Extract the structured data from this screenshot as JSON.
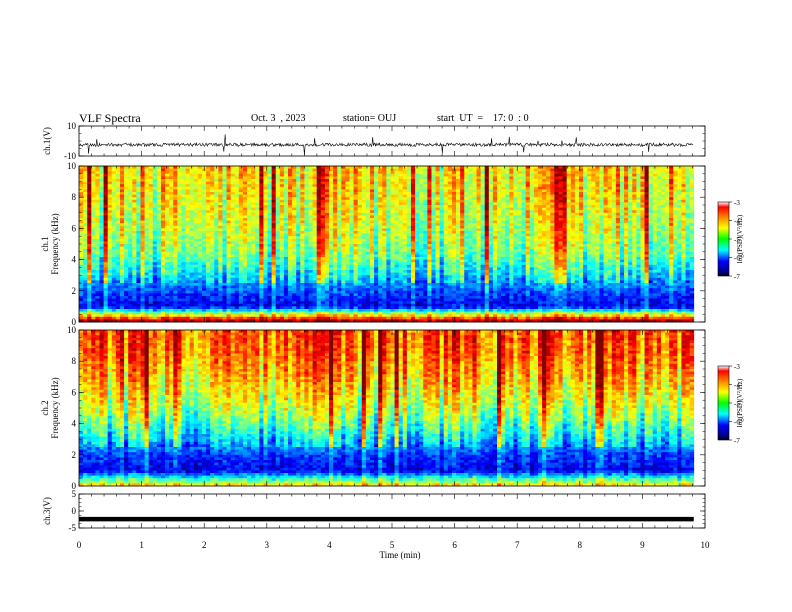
{
  "header": {
    "title": "VLF Spectra",
    "date": "Oct. 3  , 2023",
    "station": "station= OUJ",
    "start": "start  UT  =    17: 0  : 0"
  },
  "chart_data": [
    {
      "type": "line",
      "name": "ch1-waveform",
      "ylabel": "ch.1(V)",
      "xlim": [
        0,
        10
      ],
      "ylim": [
        -10,
        10
      ],
      "yticks": [
        "10",
        "-10"
      ],
      "description_level": -2.5,
      "baseline": -3,
      "xticks": [
        0,
        1,
        2,
        3,
        4,
        5,
        6,
        7,
        8,
        9,
        10
      ]
    },
    {
      "type": "heatmap",
      "name": "ch1-spectrogram",
      "ylabel": "ch.1\nFrequency  (kHz)",
      "xlim": [
        0,
        9.82
      ],
      "ylim": [
        0,
        10
      ],
      "yticks": [
        "0",
        "2",
        "4",
        "6",
        "8",
        "10"
      ],
      "colorbar": {
        "label": "log(PSD)(V²/Hz)",
        "range": [
          -7,
          -3
        ],
        "ticks": [
          "-3",
          "-4",
          "-5",
          "-6",
          "-7"
        ]
      },
      "intensity_profile": [
        {
          "freq_khz": 0.3,
          "logpsd": -4.0
        },
        {
          "freq_khz": 1.0,
          "logpsd": -6.6
        },
        {
          "freq_khz": 2.0,
          "logpsd": -6.2
        },
        {
          "freq_khz": 3.0,
          "logpsd": -5.6
        },
        {
          "freq_khz": 4.5,
          "logpsd": -5.0
        },
        {
          "freq_khz": 6.5,
          "logpsd": -4.7
        },
        {
          "freq_khz": 8.5,
          "logpsd": -4.5
        },
        {
          "freq_khz": 10.0,
          "logpsd": -4.4
        }
      ]
    },
    {
      "type": "heatmap",
      "name": "ch2-spectrogram",
      "ylabel": "ch.2\nFrequency  (kHz)",
      "xlim": [
        0,
        9.82
      ],
      "ylim": [
        0,
        10
      ],
      "yticks": [
        "0",
        "2",
        "4",
        "6",
        "8",
        "10"
      ],
      "colorbar": {
        "label": "log(PSD)(V²/Hz)",
        "range": [
          -7,
          -3
        ],
        "ticks": [
          "-3",
          "-4",
          "-5",
          "-6",
          "-7"
        ]
      },
      "intensity_profile": [
        {
          "freq_khz": 0.3,
          "logpsd": -5.0
        },
        {
          "freq_khz": 1.0,
          "logpsd": -6.6
        },
        {
          "freq_khz": 2.0,
          "logpsd": -6.3
        },
        {
          "freq_khz": 3.0,
          "logpsd": -5.7
        },
        {
          "freq_khz": 4.5,
          "logpsd": -5.0
        },
        {
          "freq_khz": 6.5,
          "logpsd": -4.4
        },
        {
          "freq_khz": 8.5,
          "logpsd": -4.0
        },
        {
          "freq_khz": 10.0,
          "logpsd": -3.9
        }
      ]
    },
    {
      "type": "line",
      "name": "ch3-waveform",
      "ylabel": "ch.3(V)",
      "xlim": [
        0,
        10
      ],
      "ylim": [
        -5,
        5
      ],
      "yticks": [
        "5",
        "0",
        "-5"
      ],
      "level": -2.4,
      "xlabel": "Time  (min)",
      "xticks": [
        "0",
        "1",
        "2",
        "3",
        "4",
        "5",
        "6",
        "7",
        "8",
        "9",
        "10"
      ]
    }
  ],
  "colors": {
    "jet": [
      "#00007f",
      "#0000ff",
      "#007fff",
      "#00ffff",
      "#7fff7f",
      "#ffff00",
      "#ff7f00",
      "#ff0000",
      "#7f0000"
    ]
  }
}
